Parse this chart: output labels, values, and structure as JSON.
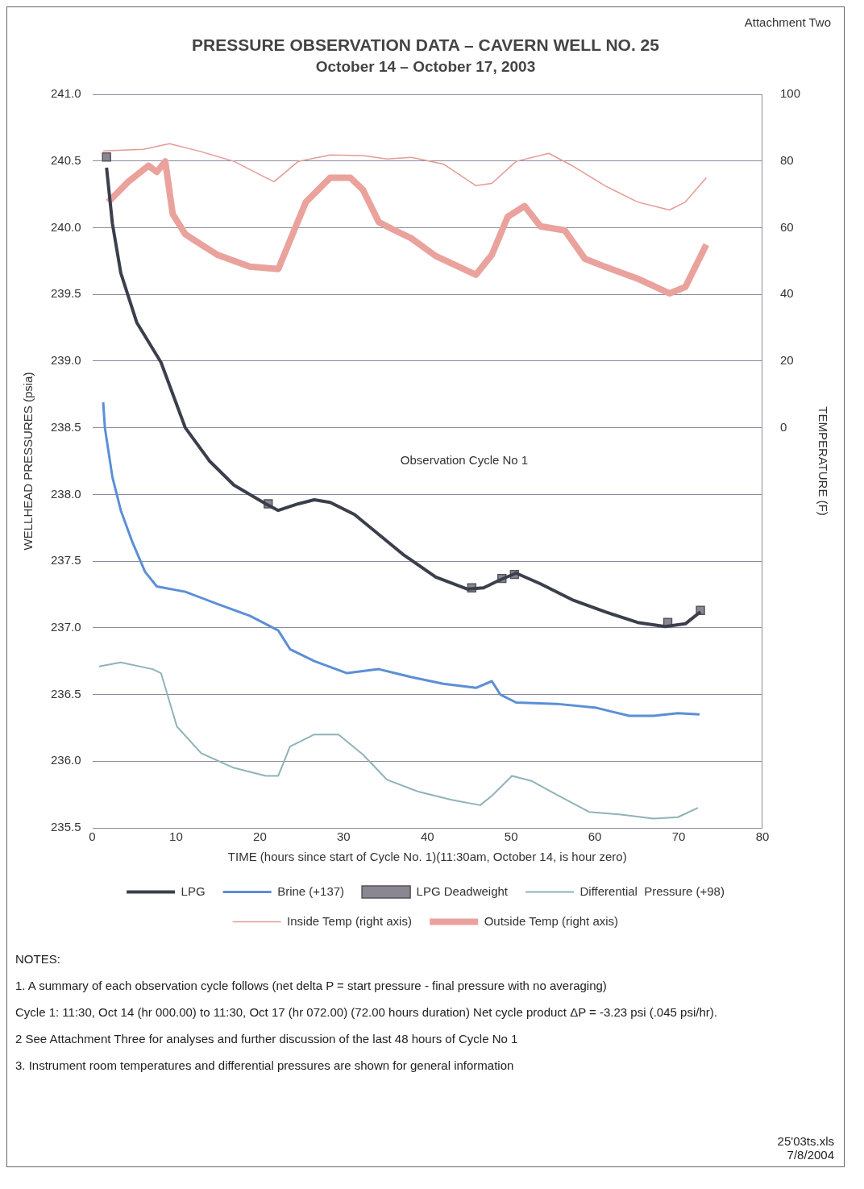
{
  "chart_data": {
    "type": "line",
    "title": "PRESSURE OBSERVATION DATA – CAVERN WELL NO. 25",
    "subtitle": "October 14 – October 17, 2003",
    "xlabel": "TIME (hours since start of Cycle No. 1)(11:30am, October 14, is hour zero)",
    "ylabel": "WELLHEAD PRESSURES (psia)",
    "y2label": "TEMPERATURE (F)",
    "xlim": [
      0,
      80
    ],
    "xticks": [
      0,
      10,
      20,
      30,
      40,
      50,
      60,
      70,
      80
    ],
    "ylim": [
      235.5,
      241.0
    ],
    "yticks": [
      {
        "value": 235.5,
        "label": "235.5"
      },
      {
        "value": 236,
        "label": "236.0"
      },
      {
        "value": 236.5,
        "label": "236.5"
      },
      {
        "value": 237,
        "label": "237.0"
      },
      {
        "value": 237.5,
        "label": "237.5"
      },
      {
        "value": 238,
        "label": "238.0"
      },
      {
        "value": 238.5,
        "label": "238.5"
      },
      {
        "value": 239,
        "label": "239.0"
      },
      {
        "value": 239.5,
        "label": "239.5"
      },
      {
        "value": 240,
        "label": "240.0"
      },
      {
        "value": 240.5,
        "label": "240.5"
      },
      {
        "value": 241,
        "label": "241.0"
      }
    ],
    "y2lim": [
      -120,
      100
    ],
    "y2ticks": [
      0,
      20,
      40,
      60,
      80,
      100
    ],
    "grid": "y",
    "legend": "bottom",
    "annotations": [
      "Attachment Two",
      "Observation Cycle No 1",
      "NOTES:",
      "1. A summary of each observation cycle follows (net delta P = start pressure - final pressure with no averaging)",
      "Cycle 1:  11:30, Oct 14 (hr 000.00) to 11:30, Oct 17 (hr 072.00) (72.00 hours duration)  Net cycle product ΔP = -3.23 psi (.045 psi/hr).",
      "2  See Attachment Three for analyses and further discussion of the last 48 hours of Cycle No 1",
      "3. Instrument room temperatures and differential pressures are shown for general information",
      "25'03ts.xls",
      "7/8/2004"
    ],
    "series": [
      {
        "name": "LPG",
        "color": "#3b3f4c",
        "x": [
          1.7,
          2.4,
          3.4,
          5.3,
          8.2,
          11.1,
          14,
          16.9,
          20.7,
          22.2,
          24.6,
          26.5,
          28.4,
          31.3,
          34.2,
          37.1,
          41,
          44.8,
          46.7,
          48.7,
          50.6,
          53.5,
          57.3,
          61.2,
          65.1,
          68.4,
          70.8,
          72.6
        ],
        "values": [
          240.45,
          240.03,
          239.66,
          239.29,
          238.99,
          238.5,
          238.25,
          238.07,
          237.93,
          237.88,
          237.93,
          237.96,
          237.94,
          237.85,
          237.7,
          237.55,
          237.38,
          237.29,
          237.3,
          237.36,
          237.41,
          237.33,
          237.21,
          237.12,
          237.04,
          237.01,
          237.03,
          237.12
        ]
      },
      {
        "name": "Brine (+137)",
        "color": "#5b8fd6",
        "x": [
          1.3,
          1.5,
          2.4,
          3.4,
          4.8,
          6.3,
          7.7,
          11.1,
          14.9,
          18.8,
          22.2,
          23.6,
          26.5,
          30.4,
          34.2,
          38.1,
          41.9,
          45.8,
          47.7,
          48.7,
          50.6,
          55.4,
          60.2,
          64.1,
          67,
          69.9,
          72.5
        ],
        "values": [
          238.69,
          238.5,
          238.13,
          237.88,
          237.64,
          237.42,
          237.31,
          237.27,
          237.18,
          237.09,
          236.98,
          236.84,
          236.75,
          236.66,
          236.69,
          236.63,
          236.58,
          236.55,
          236.6,
          236.5,
          236.44,
          236.43,
          236.4,
          236.34,
          236.34,
          236.36,
          236.35
        ]
      },
      {
        "name": "LPG Deadweight",
        "type": "scatter",
        "marker": "square",
        "color": "#8a8792",
        "x": [
          1.7,
          21,
          45.3,
          48.9,
          50.4,
          68.7,
          72.6
        ],
        "values": [
          240.53,
          237.93,
          237.3,
          237.37,
          237.4,
          237.04,
          237.13
        ]
      },
      {
        "name": "Differential  Pressure (+98)",
        "color": "#8fb3b8",
        "x": [
          0.8,
          3.4,
          7.2,
          8.2,
          10.1,
          13,
          16.9,
          20.7,
          22.2,
          23.6,
          26.5,
          29.4,
          32.3,
          35.2,
          39,
          42.9,
          46.3,
          47.7,
          50.1,
          52.5,
          55.4,
          59.3,
          63.1,
          67,
          69.9,
          72.3
        ],
        "values": [
          236.71,
          236.74,
          236.69,
          236.66,
          236.26,
          236.06,
          235.95,
          235.89,
          235.89,
          236.11,
          236.2,
          236.2,
          236.05,
          235.86,
          235.77,
          235.71,
          235.67,
          235.74,
          235.89,
          235.85,
          235.75,
          235.62,
          235.6,
          235.57,
          235.58,
          235.65
        ]
      },
      {
        "name": "Inside Temp (right axis)",
        "axis": "y2",
        "color": "#e59a94",
        "x": [
          1.3,
          6.1,
          9.2,
          13,
          16.9,
          20.7,
          21.7,
          24.6,
          28.4,
          32.3,
          35.2,
          38.1,
          41.9,
          45.8,
          47.7,
          50.6,
          54.5,
          57.3,
          61.2,
          65.1,
          68.9,
          70.8,
          73.3
        ],
        "values": [
          83,
          83.5,
          85.2,
          82.8,
          79.9,
          75,
          73.8,
          79.9,
          81.8,
          81.6,
          80.6,
          81.1,
          79.1,
          72.6,
          73.3,
          79.9,
          82.3,
          78.6,
          72.6,
          67.7,
          65.3,
          67.7,
          75
        ]
      },
      {
        "name": "Outside Temp (right axis)",
        "axis": "y2",
        "color": "#eaa29c",
        "x": [
          1.9,
          4.3,
          6.7,
          7.7,
          8.7,
          9.6,
          11.1,
          14.9,
          18.8,
          22.2,
          24.1,
          25.5,
          28.4,
          30.8,
          32.3,
          34.2,
          36.1,
          38.1,
          41,
          45.8,
          47.7,
          49.6,
          51.6,
          53.5,
          56.4,
          58.8,
          61.2,
          65.1,
          68.9,
          70.8,
          73.3
        ],
        "values": [
          67.7,
          73.8,
          78.6,
          76.7,
          79.9,
          64.1,
          58,
          51.9,
          48.3,
          47.6,
          59.2,
          67.7,
          75,
          75,
          71.4,
          61.7,
          59.2,
          56.8,
          51.5,
          45.9,
          51.9,
          63.3,
          66.5,
          60.4,
          59.2,
          50.7,
          48.3,
          44.7,
          40.3,
          42.2,
          54.9
        ]
      }
    ]
  }
}
